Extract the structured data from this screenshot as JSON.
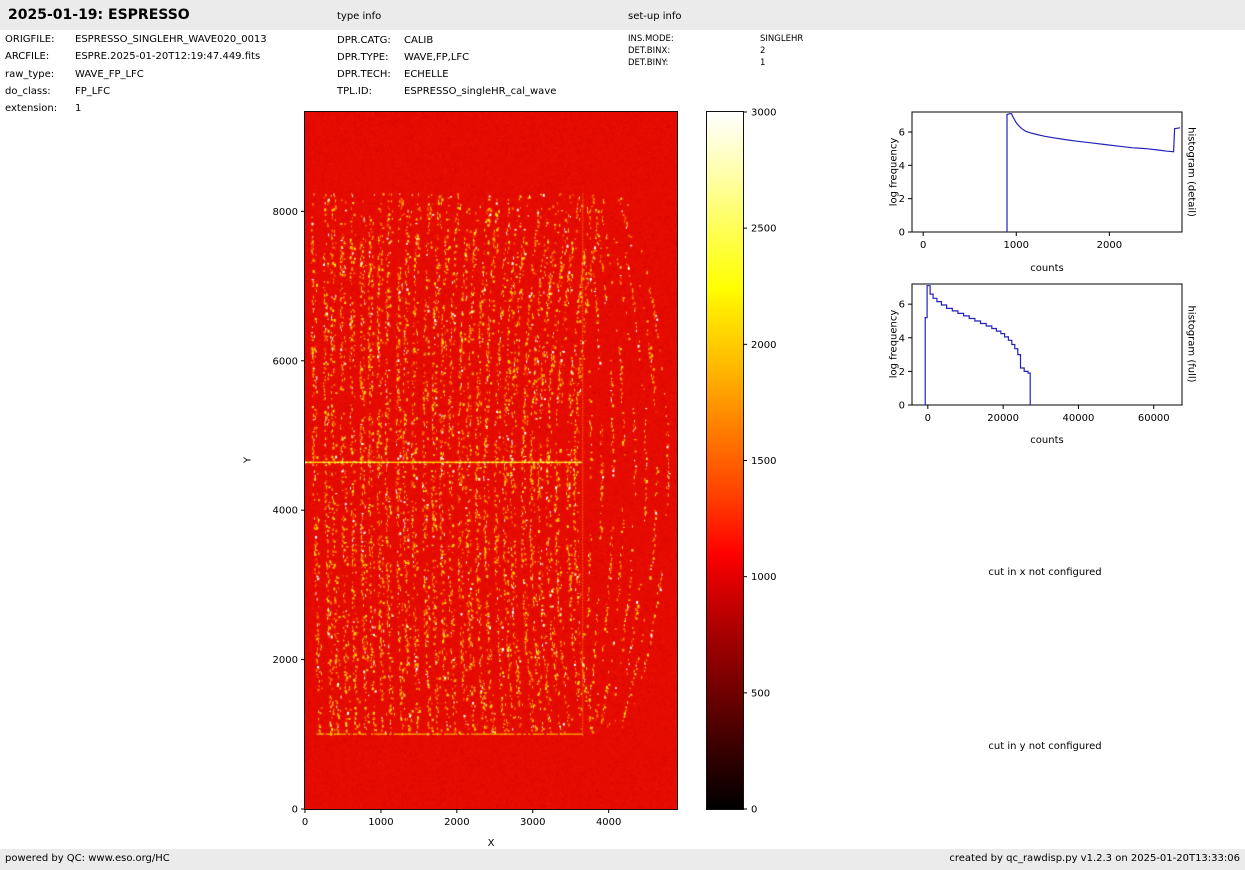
{
  "header": {
    "title": "2025-01-19: ESPRESSO",
    "type_info_label": "type info",
    "setup_info_label": "set-up info"
  },
  "file_info": {
    "rows": [
      {
        "label": "ORIGFILE:",
        "value": "ESPRESSO_SINGLEHR_WAVE020_0013"
      },
      {
        "label": "ARCFILE:",
        "value": "ESPRE.2025-01-20T12:19:47.449.fits"
      },
      {
        "label": "raw_type:",
        "value": "WAVE_FP_LFC"
      },
      {
        "label": "do_class:",
        "value": "FP_LFC"
      },
      {
        "label": "extension:",
        "value": "1"
      }
    ]
  },
  "type_info": {
    "rows": [
      {
        "label": "DPR.CATG:",
        "value": "CALIB"
      },
      {
        "label": "DPR.TYPE:",
        "value": "WAVE,FP,LFC"
      },
      {
        "label": "DPR.TECH:",
        "value": "ECHELLE"
      },
      {
        "label": "TPL.ID:",
        "value": "ESPRESSO_singleHR_cal_wave"
      }
    ]
  },
  "setup_info": {
    "rows": [
      {
        "label": "INS.MODE:",
        "value": "SINGLEHR"
      },
      {
        "label": "DET.BINX:",
        "value": "2"
      },
      {
        "label": "DET.BINY:",
        "value": "1"
      }
    ]
  },
  "messages": {
    "cut_x": "cut in x not configured",
    "cut_y": "cut in y not configured"
  },
  "footer": {
    "left": "powered by QC: www.eso.org/HC",
    "right": "created by qc_rawdisp.py v1.2.3 on 2025-01-20T13:33:06"
  },
  "chart_data": [
    {
      "type": "heatmap",
      "name": "raw-detector-image",
      "xlabel": "X",
      "ylabel": "Y",
      "xlim": [
        0,
        4900
      ],
      "ylim": [
        0,
        9330
      ],
      "xticks": [
        0,
        1000,
        2000,
        3000,
        4000
      ],
      "yticks": [
        0,
        2000,
        4000,
        6000,
        8000
      ],
      "colormap": "hot",
      "background_level": 1000,
      "colorbar": {
        "lim": [
          0,
          3000
        ],
        "ticks": [
          0,
          500,
          1000,
          1500,
          2000,
          2500,
          3000
        ]
      },
      "features": {
        "fringe_region_x": [
          100,
          4850
        ],
        "fringe_region_y": [
          1000,
          8250
        ],
        "num_order_stripes_left": 30,
        "num_order_stripes_right": 8,
        "bright_horizontal_line_y": 4650,
        "bright_horizontal_line_x_extent": [
          0,
          3650
        ],
        "bottom_dotted_line_y": 1010,
        "vertical_boundary_x": 3650,
        "peak_level": 3000
      }
    },
    {
      "type": "line",
      "name": "histogram-detail",
      "right_label": "histogram (detail)",
      "xlabel": "counts",
      "ylabel": "log frequency",
      "xlim": [
        -120,
        2780
      ],
      "ylim": [
        0,
        7.2
      ],
      "xticks": [
        0,
        1000,
        2000
      ],
      "yticks": [
        0,
        2,
        4,
        6
      ],
      "line_color": "#2222bb",
      "points": [
        [
          900,
          0
        ],
        [
          900,
          7.05
        ],
        [
          930,
          7.1
        ],
        [
          950,
          7.1
        ],
        [
          960,
          6.95
        ],
        [
          980,
          6.75
        ],
        [
          1000,
          6.55
        ],
        [
          1030,
          6.35
        ],
        [
          1060,
          6.2
        ],
        [
          1100,
          6.05
        ],
        [
          1150,
          5.95
        ],
        [
          1220,
          5.85
        ],
        [
          1300,
          5.75
        ],
        [
          1400,
          5.65
        ],
        [
          1520,
          5.55
        ],
        [
          1650,
          5.45
        ],
        [
          1800,
          5.35
        ],
        [
          1950,
          5.25
        ],
        [
          2100,
          5.15
        ],
        [
          2250,
          5.05
        ],
        [
          2400,
          5.0
        ],
        [
          2520,
          4.92
        ],
        [
          2620,
          4.85
        ],
        [
          2690,
          4.82
        ],
        [
          2700,
          6.2
        ],
        [
          2760,
          6.25
        ]
      ]
    },
    {
      "type": "line",
      "name": "histogram-full",
      "right_label": "histogram (full)",
      "xlabel": "counts",
      "ylabel": "log frequency",
      "xlim": [
        -4200,
        67500
      ],
      "ylim": [
        0,
        7.2
      ],
      "xticks": [
        0,
        20000,
        40000,
        60000
      ],
      "yticks": [
        0,
        2,
        4,
        6
      ],
      "line_color": "#2222bb",
      "points": [
        [
          -700,
          0
        ],
        [
          -700,
          5.2
        ],
        [
          -200,
          5.2
        ],
        [
          -200,
          7.1
        ],
        [
          600,
          7.1
        ],
        [
          600,
          6.6
        ],
        [
          1400,
          6.6
        ],
        [
          1400,
          6.35
        ],
        [
          2400,
          6.35
        ],
        [
          2400,
          6.15
        ],
        [
          3600,
          6.15
        ],
        [
          3600,
          5.95
        ],
        [
          5000,
          5.95
        ],
        [
          5000,
          5.75
        ],
        [
          6500,
          5.75
        ],
        [
          6500,
          5.6
        ],
        [
          8000,
          5.6
        ],
        [
          8000,
          5.45
        ],
        [
          9500,
          5.45
        ],
        [
          9500,
          5.3
        ],
        [
          11000,
          5.3
        ],
        [
          11000,
          5.15
        ],
        [
          12500,
          5.15
        ],
        [
          12500,
          5.0
        ],
        [
          14000,
          5.0
        ],
        [
          14000,
          4.85
        ],
        [
          15500,
          4.85
        ],
        [
          15500,
          4.7
        ],
        [
          17000,
          4.7
        ],
        [
          17000,
          4.55
        ],
        [
          18200,
          4.55
        ],
        [
          18200,
          4.4
        ],
        [
          19400,
          4.4
        ],
        [
          19400,
          4.25
        ],
        [
          20400,
          4.25
        ],
        [
          20400,
          4.05
        ],
        [
          21400,
          4.05
        ],
        [
          21400,
          3.85
        ],
        [
          22300,
          3.85
        ],
        [
          22300,
          3.6
        ],
        [
          23100,
          3.6
        ],
        [
          23100,
          3.35
        ],
        [
          23900,
          3.35
        ],
        [
          23900,
          3.0
        ],
        [
          24600,
          3.0
        ],
        [
          24600,
          2.2
        ],
        [
          25600,
          2.2
        ],
        [
          25600,
          2.0
        ],
        [
          26600,
          2.0
        ],
        [
          26600,
          1.9
        ],
        [
          27200,
          1.9
        ],
        [
          27200,
          0
        ]
      ]
    }
  ]
}
